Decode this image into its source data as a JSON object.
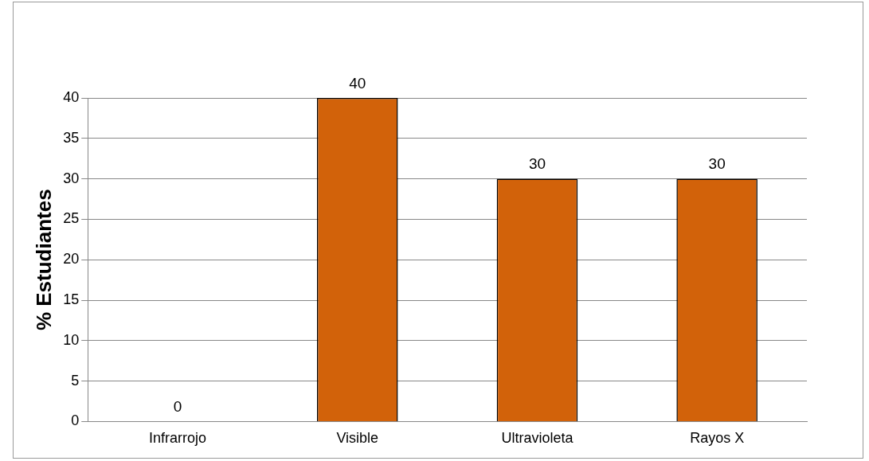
{
  "chart_data": {
    "type": "bar",
    "ylabel": "% Estudiantes",
    "categories": [
      "Infrarrojo",
      "Visible",
      "Ultravioleta",
      "Rayos X"
    ],
    "values": [
      0,
      40,
      30,
      30
    ],
    "color": "#d2620a",
    "ylim": [
      0,
      40
    ],
    "yticks": [
      0,
      5,
      10,
      15,
      20,
      25,
      30,
      35,
      40
    ],
    "grid": "y",
    "legend": false,
    "data_labels": true
  }
}
